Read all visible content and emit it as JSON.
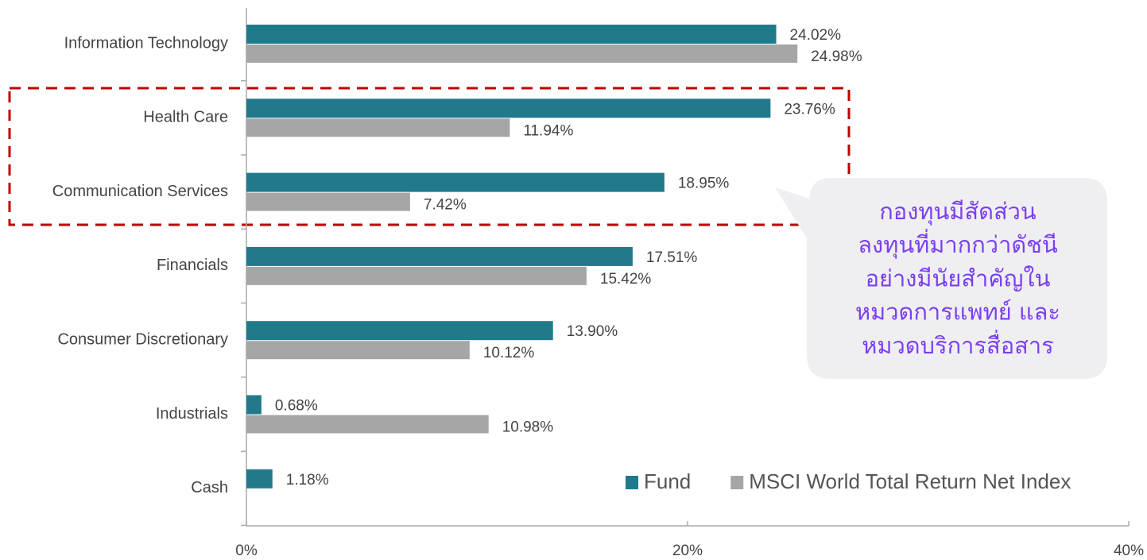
{
  "chart_data": {
    "type": "bar",
    "orientation": "horizontal",
    "categories": [
      "Information Technology",
      "Health Care",
      "Communication Services",
      "Financials",
      "Consumer Discretionary",
      "Industrials",
      "Cash"
    ],
    "series": [
      {
        "name": "Fund",
        "color": "#217a8c",
        "values": [
          24.02,
          23.76,
          18.95,
          17.51,
          13.9,
          0.68,
          1.18
        ],
        "value_labels": [
          "24.02%",
          "23.76%",
          "18.95%",
          "17.51%",
          "13.90%",
          "0.68%",
          "1.18%"
        ]
      },
      {
        "name": "MSCI World Total Return Net Index",
        "color": "#a6a6a6",
        "values": [
          24.98,
          11.94,
          7.42,
          15.42,
          10.12,
          10.98,
          null
        ],
        "value_labels": [
          "24.98%",
          "11.94%",
          "7.42%",
          "15.42%",
          "10.12%",
          "10.98%",
          null
        ]
      }
    ],
    "xlim": [
      0,
      40
    ],
    "xticks": [
      {
        "value": 0,
        "label": "0%"
      },
      {
        "value": 20,
        "label": "20%"
      },
      {
        "value": 40,
        "label": "40%"
      }
    ],
    "legend": "lower right",
    "annotation": [
      "กองทุนมีสัดส่วน",
      "ลงทุนที่มากกว่าดัชนี",
      "อย่างมีนัยสำคัญใน",
      "หมวดการแพทย์ และ",
      "หมวดบริการสื่อสาร"
    ]
  }
}
